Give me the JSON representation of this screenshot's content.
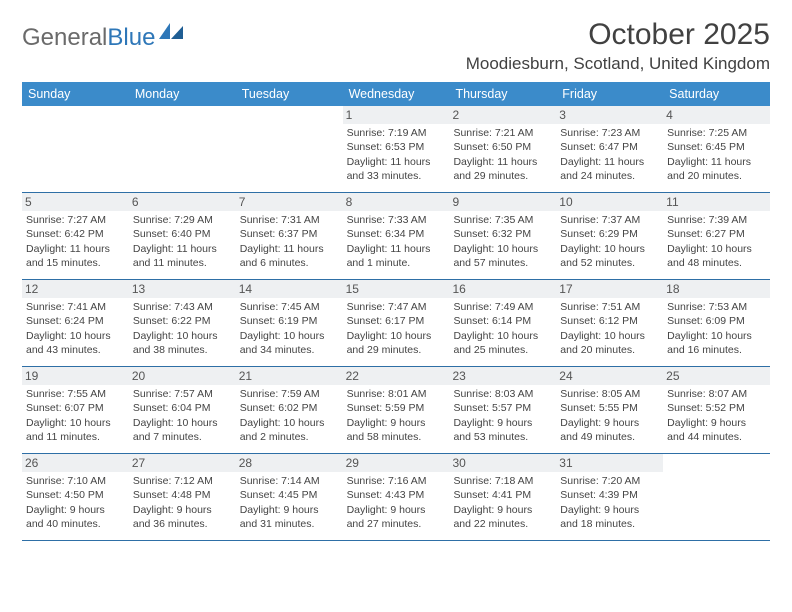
{
  "logo": {
    "part1": "General",
    "part2": "Blue"
  },
  "title": "October 2025",
  "location": "Moodiesburn, Scotland, United Kingdom",
  "header_bg": "#3b8bca",
  "weekdays": [
    "Sunday",
    "Monday",
    "Tuesday",
    "Wednesday",
    "Thursday",
    "Friday",
    "Saturday"
  ],
  "weeks": [
    [
      {
        "n": "",
        "sr": "",
        "ss": "",
        "dl": ""
      },
      {
        "n": "",
        "sr": "",
        "ss": "",
        "dl": ""
      },
      {
        "n": "",
        "sr": "",
        "ss": "",
        "dl": ""
      },
      {
        "n": "1",
        "sr": "Sunrise: 7:19 AM",
        "ss": "Sunset: 6:53 PM",
        "dl": "Daylight: 11 hours and 33 minutes."
      },
      {
        "n": "2",
        "sr": "Sunrise: 7:21 AM",
        "ss": "Sunset: 6:50 PM",
        "dl": "Daylight: 11 hours and 29 minutes."
      },
      {
        "n": "3",
        "sr": "Sunrise: 7:23 AM",
        "ss": "Sunset: 6:47 PM",
        "dl": "Daylight: 11 hours and 24 minutes."
      },
      {
        "n": "4",
        "sr": "Sunrise: 7:25 AM",
        "ss": "Sunset: 6:45 PM",
        "dl": "Daylight: 11 hours and 20 minutes."
      }
    ],
    [
      {
        "n": "5",
        "sr": "Sunrise: 7:27 AM",
        "ss": "Sunset: 6:42 PM",
        "dl": "Daylight: 11 hours and 15 minutes."
      },
      {
        "n": "6",
        "sr": "Sunrise: 7:29 AM",
        "ss": "Sunset: 6:40 PM",
        "dl": "Daylight: 11 hours and 11 minutes."
      },
      {
        "n": "7",
        "sr": "Sunrise: 7:31 AM",
        "ss": "Sunset: 6:37 PM",
        "dl": "Daylight: 11 hours and 6 minutes."
      },
      {
        "n": "8",
        "sr": "Sunrise: 7:33 AM",
        "ss": "Sunset: 6:34 PM",
        "dl": "Daylight: 11 hours and 1 minute."
      },
      {
        "n": "9",
        "sr": "Sunrise: 7:35 AM",
        "ss": "Sunset: 6:32 PM",
        "dl": "Daylight: 10 hours and 57 minutes."
      },
      {
        "n": "10",
        "sr": "Sunrise: 7:37 AM",
        "ss": "Sunset: 6:29 PM",
        "dl": "Daylight: 10 hours and 52 minutes."
      },
      {
        "n": "11",
        "sr": "Sunrise: 7:39 AM",
        "ss": "Sunset: 6:27 PM",
        "dl": "Daylight: 10 hours and 48 minutes."
      }
    ],
    [
      {
        "n": "12",
        "sr": "Sunrise: 7:41 AM",
        "ss": "Sunset: 6:24 PM",
        "dl": "Daylight: 10 hours and 43 minutes."
      },
      {
        "n": "13",
        "sr": "Sunrise: 7:43 AM",
        "ss": "Sunset: 6:22 PM",
        "dl": "Daylight: 10 hours and 38 minutes."
      },
      {
        "n": "14",
        "sr": "Sunrise: 7:45 AM",
        "ss": "Sunset: 6:19 PM",
        "dl": "Daylight: 10 hours and 34 minutes."
      },
      {
        "n": "15",
        "sr": "Sunrise: 7:47 AM",
        "ss": "Sunset: 6:17 PM",
        "dl": "Daylight: 10 hours and 29 minutes."
      },
      {
        "n": "16",
        "sr": "Sunrise: 7:49 AM",
        "ss": "Sunset: 6:14 PM",
        "dl": "Daylight: 10 hours and 25 minutes."
      },
      {
        "n": "17",
        "sr": "Sunrise: 7:51 AM",
        "ss": "Sunset: 6:12 PM",
        "dl": "Daylight: 10 hours and 20 minutes."
      },
      {
        "n": "18",
        "sr": "Sunrise: 7:53 AM",
        "ss": "Sunset: 6:09 PM",
        "dl": "Daylight: 10 hours and 16 minutes."
      }
    ],
    [
      {
        "n": "19",
        "sr": "Sunrise: 7:55 AM",
        "ss": "Sunset: 6:07 PM",
        "dl": "Daylight: 10 hours and 11 minutes."
      },
      {
        "n": "20",
        "sr": "Sunrise: 7:57 AM",
        "ss": "Sunset: 6:04 PM",
        "dl": "Daylight: 10 hours and 7 minutes."
      },
      {
        "n": "21",
        "sr": "Sunrise: 7:59 AM",
        "ss": "Sunset: 6:02 PM",
        "dl": "Daylight: 10 hours and 2 minutes."
      },
      {
        "n": "22",
        "sr": "Sunrise: 8:01 AM",
        "ss": "Sunset: 5:59 PM",
        "dl": "Daylight: 9 hours and 58 minutes."
      },
      {
        "n": "23",
        "sr": "Sunrise: 8:03 AM",
        "ss": "Sunset: 5:57 PM",
        "dl": "Daylight: 9 hours and 53 minutes."
      },
      {
        "n": "24",
        "sr": "Sunrise: 8:05 AM",
        "ss": "Sunset: 5:55 PM",
        "dl": "Daylight: 9 hours and 49 minutes."
      },
      {
        "n": "25",
        "sr": "Sunrise: 8:07 AM",
        "ss": "Sunset: 5:52 PM",
        "dl": "Daylight: 9 hours and 44 minutes."
      }
    ],
    [
      {
        "n": "26",
        "sr": "Sunrise: 7:10 AM",
        "ss": "Sunset: 4:50 PM",
        "dl": "Daylight: 9 hours and 40 minutes."
      },
      {
        "n": "27",
        "sr": "Sunrise: 7:12 AM",
        "ss": "Sunset: 4:48 PM",
        "dl": "Daylight: 9 hours and 36 minutes."
      },
      {
        "n": "28",
        "sr": "Sunrise: 7:14 AM",
        "ss": "Sunset: 4:45 PM",
        "dl": "Daylight: 9 hours and 31 minutes."
      },
      {
        "n": "29",
        "sr": "Sunrise: 7:16 AM",
        "ss": "Sunset: 4:43 PM",
        "dl": "Daylight: 9 hours and 27 minutes."
      },
      {
        "n": "30",
        "sr": "Sunrise: 7:18 AM",
        "ss": "Sunset: 4:41 PM",
        "dl": "Daylight: 9 hours and 22 minutes."
      },
      {
        "n": "31",
        "sr": "Sunrise: 7:20 AM",
        "ss": "Sunset: 4:39 PM",
        "dl": "Daylight: 9 hours and 18 minutes."
      },
      {
        "n": "",
        "sr": "",
        "ss": "",
        "dl": ""
      }
    ]
  ]
}
